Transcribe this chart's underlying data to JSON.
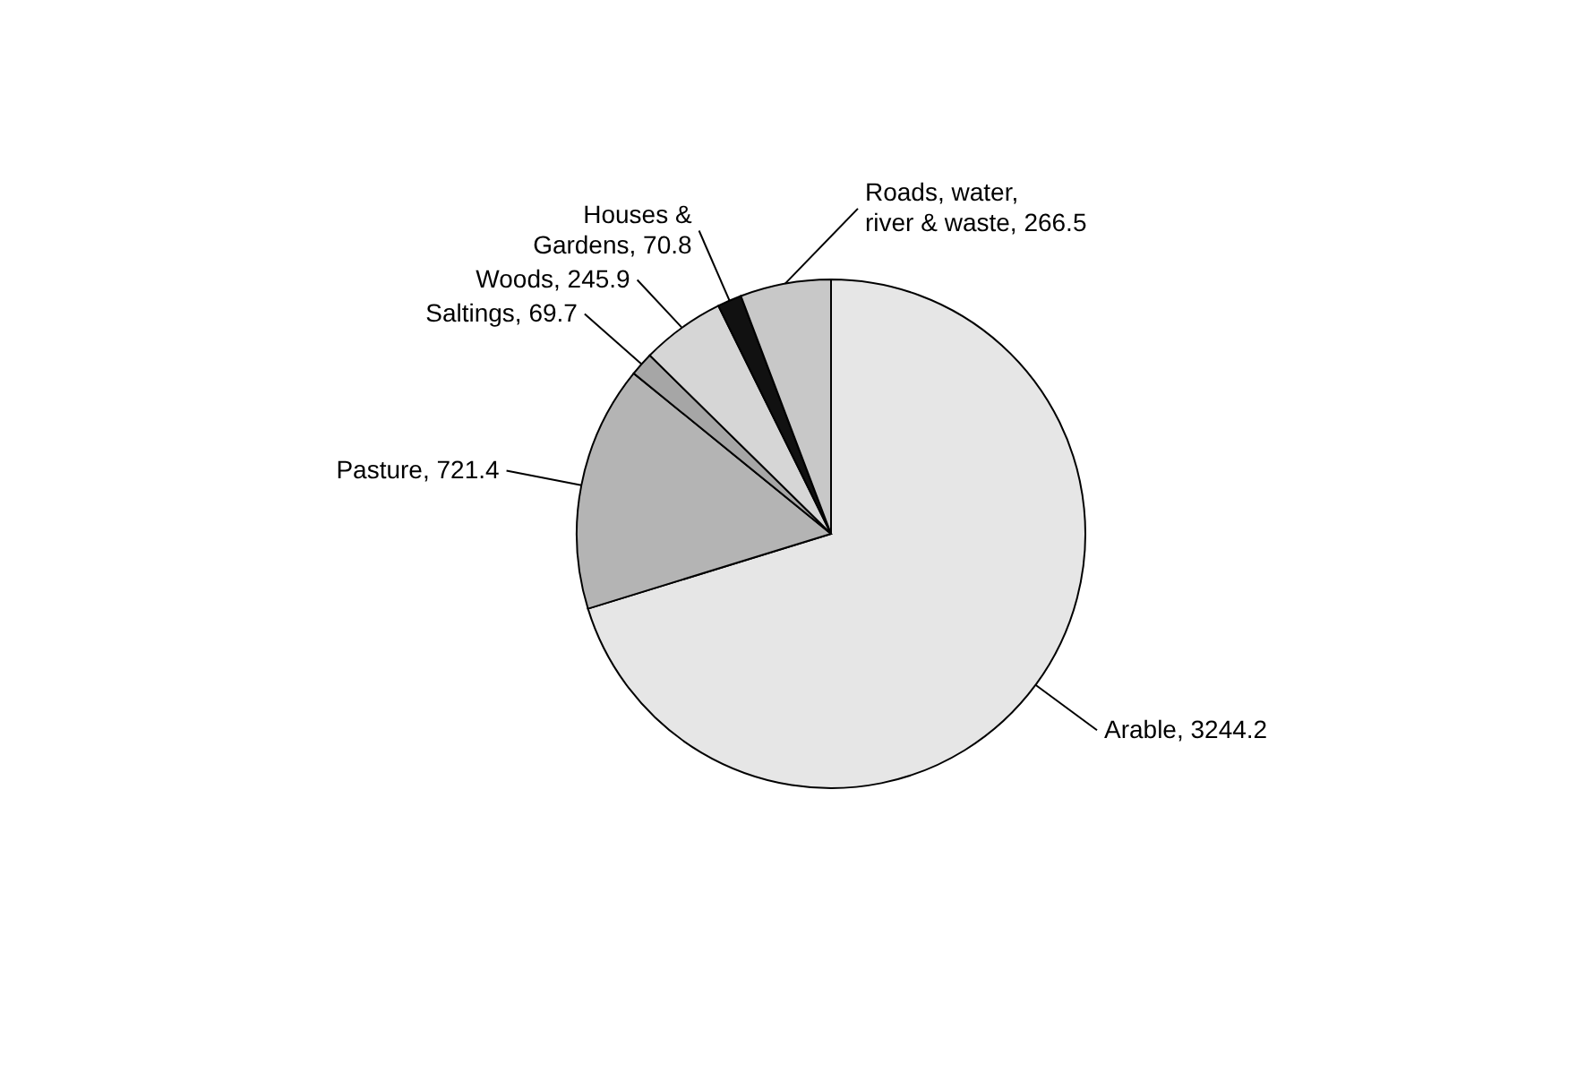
{
  "chart_data": {
    "type": "pie",
    "categories": [
      "Arable",
      "Pasture",
      "Saltings",
      "Woods",
      "Houses & Gardens",
      "Roads, water, river & waste"
    ],
    "values": [
      3244.2,
      721.4,
      69.7,
      245.9,
      70.8,
      266.5
    ],
    "colors": [
      "#e6e6e6",
      "#b4b4b4",
      "#a6a6a6",
      "#d6d6d6",
      "#111111",
      "#c8c8c8"
    ],
    "value_labels": [
      ", 3244.2",
      ", 721.4",
      ", 69.7",
      ", 245.9",
      ", 70.8",
      ", 266.5"
    ]
  }
}
